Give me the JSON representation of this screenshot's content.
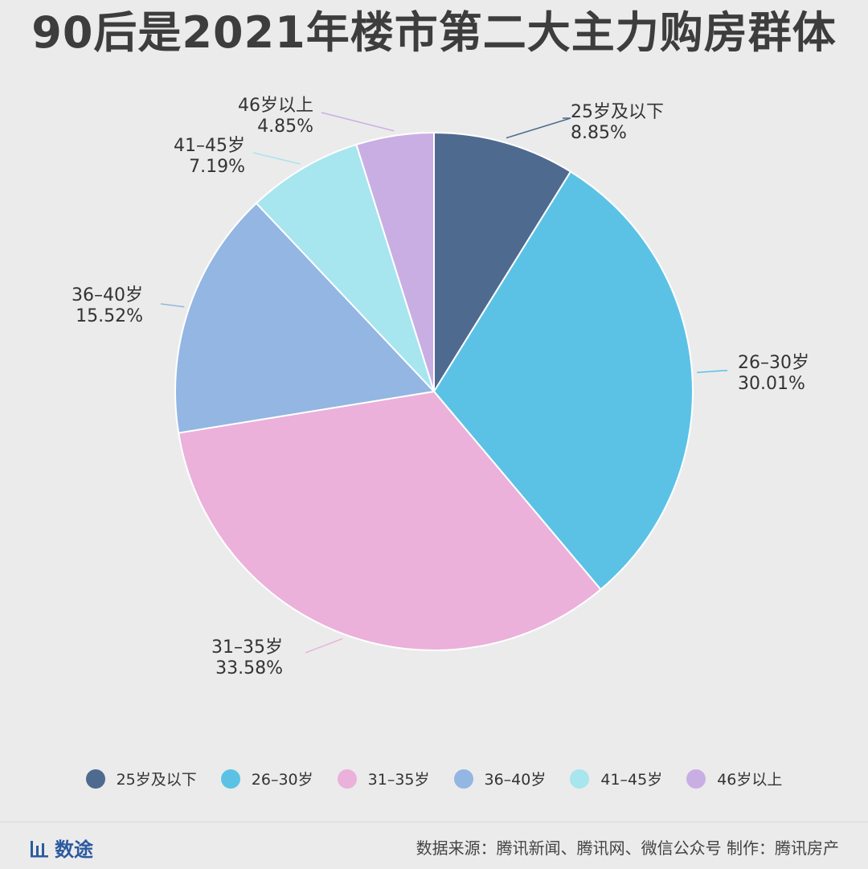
{
  "chart_data": {
    "type": "pie",
    "title": "90后是2021年楼市第二大主力购房群体",
    "categories": [
      "25岁及以下",
      "26–30岁",
      "31–35岁",
      "36–40岁",
      "41–45岁",
      "46岁以上"
    ],
    "values": [
      8.85,
      30.01,
      33.58,
      15.52,
      7.19,
      4.85
    ],
    "value_labels": [
      "8.85%",
      "30.01%",
      "33.58%",
      "15.52%",
      "7.19%",
      "4.85%"
    ],
    "colors": [
      "#4f6a8f",
      "#5bc2e6",
      "#ebb1da",
      "#93b6e3",
      "#a7e5ef",
      "#c9aee3"
    ],
    "legend_position": "bottom",
    "start_angle": "12 o'clock",
    "direction": "clockwise"
  },
  "footer": {
    "logo_text": "数途",
    "source": "数据来源：腾讯新闻、腾讯网、微信公众号 制作：腾讯房产"
  },
  "icons": {
    "logo": "bar-chart-icon"
  }
}
